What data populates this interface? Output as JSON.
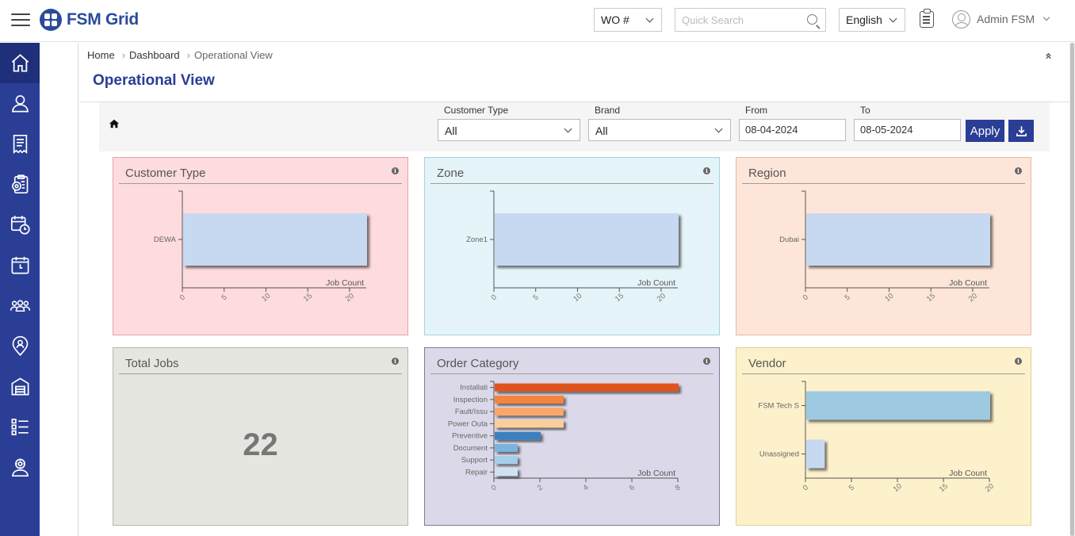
{
  "app": {
    "brand": "FSM Grid"
  },
  "header": {
    "wo_select": "WO #",
    "search_placeholder": "Quick Search",
    "language": "English",
    "user_name": "Admin FSM"
  },
  "sidebar": {
    "items": [
      {
        "icon": "home-icon",
        "active": true
      },
      {
        "icon": "user-icon"
      },
      {
        "icon": "invoice-icon"
      },
      {
        "icon": "clipboard-gear-icon"
      },
      {
        "icon": "calendar-clock-icon"
      },
      {
        "icon": "calendar-icon"
      },
      {
        "icon": "team-icon"
      },
      {
        "icon": "location-user-icon"
      },
      {
        "icon": "warehouse-icon"
      },
      {
        "icon": "checklist-icon"
      },
      {
        "icon": "technician-icon"
      }
    ]
  },
  "breadcrumb": {
    "home": "Home",
    "dashboard": "Dashboard",
    "current": "Operational View"
  },
  "page": {
    "title": "Operational View"
  },
  "filters": {
    "customer_type_label": "Customer Type",
    "customer_type_value": "All",
    "brand_label": "Brand",
    "brand_value": "All",
    "from_label": "From",
    "from_value": "08-04-2024",
    "to_label": "To",
    "to_value": "08-05-2024",
    "apply_label": "Apply"
  },
  "cards": {
    "customer_type": {
      "title": "Customer Type"
    },
    "zone": {
      "title": "Zone"
    },
    "region": {
      "title": "Region"
    },
    "total_jobs": {
      "title": "Total Jobs",
      "value": "22"
    },
    "order_category": {
      "title": "Order Category"
    },
    "vendor": {
      "title": "Vendor"
    }
  },
  "chart_data": [
    {
      "id": "customer_type",
      "type": "bar",
      "orientation": "horizontal",
      "categories": [
        "DEWA"
      ],
      "values": [
        22
      ],
      "xlabel": "Job Count",
      "xticks": [
        0,
        5,
        10,
        15,
        20
      ],
      "xlim": [
        0,
        22
      ],
      "colors": [
        "#c6d9f0"
      ]
    },
    {
      "id": "zone",
      "type": "bar",
      "orientation": "horizontal",
      "categories": [
        "Zone1"
      ],
      "values": [
        22
      ],
      "xlabel": "Job Count",
      "xticks": [
        0,
        5,
        10,
        15,
        20
      ],
      "xlim": [
        0,
        22
      ],
      "colors": [
        "#c6d9f0"
      ]
    },
    {
      "id": "region",
      "type": "bar",
      "orientation": "horizontal",
      "categories": [
        "Dubai"
      ],
      "values": [
        22
      ],
      "xlabel": "Job Count",
      "xticks": [
        0,
        5,
        10,
        15,
        20
      ],
      "xlim": [
        0,
        22
      ],
      "colors": [
        "#c6d9f0"
      ]
    },
    {
      "id": "order_category",
      "type": "bar",
      "orientation": "horizontal",
      "categories": [
        "Installati",
        "Inspection",
        "Fault/Issu",
        "Power Outa",
        "Preventive",
        "Document",
        "Support",
        "Repair"
      ],
      "values": [
        8,
        3,
        3,
        3,
        2,
        1,
        1,
        1
      ],
      "xlabel": "Job Count",
      "xticks": [
        0,
        2,
        4,
        6,
        8
      ],
      "xlim": [
        0,
        8
      ],
      "colors": [
        "#e0521c",
        "#f5843e",
        "#f9a76b",
        "#fbcf9c",
        "#3a80bf",
        "#7ab4de",
        "#a6cde9",
        "#cfe2f3"
      ]
    },
    {
      "id": "vendor",
      "type": "bar",
      "orientation": "horizontal",
      "categories": [
        "FSM Tech S",
        "Unassigned"
      ],
      "values": [
        20,
        2
      ],
      "xlabel": "Job Count",
      "xticks": [
        0,
        5,
        10,
        15,
        20
      ],
      "xlim": [
        0,
        20
      ],
      "colors": [
        "#9ecae1",
        "#c6d9f0"
      ]
    }
  ]
}
